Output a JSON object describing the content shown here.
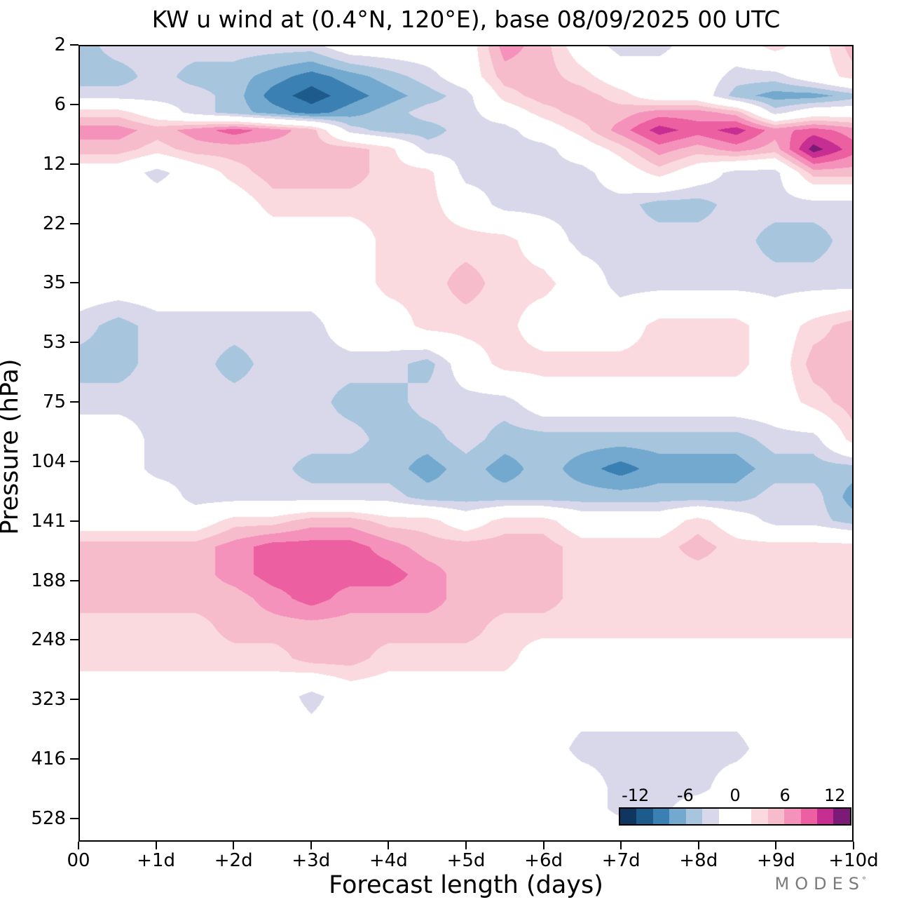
{
  "title": {
    "text": "KW u wind at (0.4°N, 120°E),  base 08/09/2025  00 UTC"
  },
  "branding": {
    "text": "MODES",
    "degree": "°"
  },
  "chart_data": {
    "type": "heatmap",
    "subtype": "filled-contour",
    "title": "KW u wind at (0.4°N, 120°E), base 08/09/2025 00 UTC",
    "xlabel": "Forecast length (days)",
    "ylabel": "Pressure (hPa)",
    "legend_position": "inside-bottom-right",
    "grid": false,
    "x_ticks": [
      "00",
      "+1d",
      "+2d",
      "+3d",
      "+4d",
      "+5d",
      "+6d",
      "+7d",
      "+8d",
      "+9d",
      "+10d"
    ],
    "x_days": [
      0,
      0.5,
      1,
      1.5,
      2,
      2.5,
      3,
      3.5,
      4,
      4.5,
      5,
      5.5,
      6,
      6.5,
      7,
      7.5,
      8,
      8.5,
      9,
      9.5,
      10
    ],
    "x_range_days": [
      0,
      10
    ],
    "y_pressure_ticks": [
      2,
      6,
      12,
      22,
      35,
      53,
      75,
      104,
      141,
      188,
      248,
      323,
      416,
      528
    ],
    "y_axis_span_tick_units": 13.39,
    "row_pressures": [
      2,
      3.5,
      5,
      6.5,
      8,
      10,
      13,
      18,
      25,
      35,
      47,
      60,
      75,
      92,
      108,
      125,
      141,
      160,
      183,
      205,
      235,
      270,
      320,
      400,
      470,
      510,
      560
    ],
    "values": [
      [
        -5,
        -3,
        -3,
        -3,
        -3,
        -3,
        -3,
        0,
        0,
        0,
        0,
        7,
        5,
        0,
        -3,
        -3,
        0,
        0,
        3,
        0,
        5
      ],
      [
        -5,
        -5,
        -3,
        -5,
        -5,
        -7,
        -9,
        -7,
        -5,
        -3,
        0,
        5,
        5,
        3,
        0,
        0,
        0,
        -3,
        -3,
        0,
        3
      ],
      [
        -3,
        -3,
        -3,
        -3,
        -5,
        -9,
        -11,
        -9,
        -7,
        -5,
        -3,
        3,
        5,
        5,
        3,
        0,
        0,
        -5,
        -7,
        -7,
        -5
      ],
      [
        3,
        3,
        0,
        -3,
        -5,
        -7,
        -9,
        -7,
        -5,
        -3,
        -3,
        0,
        3,
        5,
        5,
        7,
        7,
        5,
        -3,
        0,
        0
      ],
      [
        7,
        7,
        5,
        7,
        9,
        7,
        5,
        -3,
        -5,
        -5,
        -3,
        -3,
        0,
        3,
        7,
        11,
        9,
        11,
        7,
        9,
        7
      ],
      [
        5,
        5,
        3,
        5,
        5,
        5,
        5,
        5,
        3,
        -3,
        -3,
        -3,
        -3,
        0,
        3,
        7,
        5,
        7,
        5,
        13,
        9
      ],
      [
        0,
        0,
        -3,
        0,
        3,
        5,
        5,
        5,
        3,
        3,
        -3,
        -3,
        -3,
        -3,
        0,
        3,
        0,
        -3,
        -3,
        5,
        5
      ],
      [
        0,
        0,
        0,
        0,
        0,
        3,
        3,
        3,
        3,
        3,
        0,
        -3,
        -3,
        -3,
        -3,
        -5,
        -5,
        -3,
        -3,
        -3,
        -3
      ],
      [
        0,
        0,
        0,
        0,
        0,
        0,
        0,
        0,
        3,
        3,
        3,
        3,
        0,
        -3,
        -3,
        -3,
        -3,
        -3,
        -5,
        -5,
        -3
      ],
      [
        0,
        0,
        0,
        0,
        0,
        0,
        0,
        0,
        3,
        3,
        5,
        3,
        3,
        0,
        -3,
        -3,
        -3,
        -3,
        -3,
        -3,
        -3
      ],
      [
        -3,
        -5,
        -3,
        -3,
        -3,
        -3,
        -3,
        0,
        0,
        3,
        3,
        3,
        0,
        0,
        0,
        3,
        3,
        3,
        0,
        3,
        5
      ],
      [
        -5,
        -5,
        -3,
        -3,
        -5,
        -3,
        -3,
        -3,
        -3,
        -5,
        0,
        3,
        3,
        3,
        3,
        3,
        3,
        3,
        0,
        5,
        5
      ],
      [
        -3,
        -3,
        -3,
        -3,
        -3,
        -3,
        -3,
        -5,
        -5,
        -3,
        -3,
        -3,
        0,
        0,
        0,
        0,
        0,
        0,
        0,
        3,
        5
      ],
      [
        0,
        0,
        -3,
        -3,
        -3,
        -3,
        -3,
        -3,
        -5,
        -5,
        -3,
        -5,
        -5,
        -5,
        -5,
        -5,
        -5,
        -5,
        -3,
        -3,
        3
      ],
      [
        0,
        0,
        -3,
        -3,
        -3,
        -3,
        -5,
        -5,
        -5,
        -7,
        -5,
        -7,
        -5,
        -7,
        -9,
        -7,
        -7,
        -7,
        -5,
        -5,
        -5
      ],
      [
        0,
        0,
        0,
        -3,
        -3,
        -3,
        -3,
        -3,
        -3,
        -5,
        -5,
        -5,
        -5,
        -5,
        -5,
        -5,
        -5,
        -5,
        -3,
        -3,
        -7
      ],
      [
        0,
        0,
        0,
        0,
        3,
        3,
        5,
        5,
        3,
        3,
        0,
        3,
        3,
        0,
        0,
        0,
        3,
        0,
        -3,
        -3,
        -5
      ],
      [
        5,
        5,
        5,
        5,
        7,
        9,
        9,
        9,
        7,
        5,
        5,
        5,
        5,
        3,
        3,
        3,
        5,
        3,
        3,
        3,
        3
      ],
      [
        5,
        5,
        5,
        5,
        7,
        9,
        9,
        9,
        9,
        7,
        5,
        5,
        5,
        3,
        3,
        3,
        3,
        3,
        3,
        3,
        3
      ],
      [
        5,
        5,
        5,
        5,
        5,
        7,
        9,
        7,
        7,
        7,
        5,
        5,
        5,
        3,
        3,
        3,
        3,
        3,
        3,
        3,
        3
      ],
      [
        3,
        3,
        3,
        3,
        5,
        5,
        5,
        5,
        5,
        5,
        5,
        3,
        3,
        3,
        3,
        3,
        3,
        3,
        3,
        3,
        3
      ],
      [
        3,
        3,
        3,
        3,
        3,
        3,
        5,
        5,
        3,
        3,
        3,
        3,
        0,
        0,
        0,
        0,
        0,
        0,
        0,
        0,
        0
      ],
      [
        0,
        0,
        0,
        0,
        0,
        0,
        -3,
        0,
        0,
        0,
        0,
        0,
        0,
        0,
        0,
        0,
        0,
        0,
        0,
        0,
        0
      ],
      [
        0,
        0,
        0,
        0,
        0,
        0,
        0,
        0,
        0,
        0,
        0,
        0,
        0,
        -3,
        -3,
        -3,
        -3,
        -3,
        0,
        0,
        0
      ],
      [
        0,
        0,
        0,
        0,
        0,
        0,
        0,
        0,
        0,
        0,
        0,
        0,
        0,
        0,
        -3,
        -3,
        -3,
        0,
        0,
        0,
        0
      ],
      [
        0,
        0,
        0,
        0,
        0,
        0,
        0,
        0,
        0,
        0,
        0,
        0,
        0,
        0,
        -3,
        -3,
        0,
        0,
        0,
        0,
        0
      ],
      [
        0,
        0,
        0,
        0,
        0,
        0,
        0,
        0,
        0,
        0,
        0,
        0,
        0,
        0,
        0,
        0,
        0,
        0,
        0,
        0,
        0
      ]
    ],
    "levels_min": -14,
    "levels_max": 14,
    "levels_step": 2,
    "colorbar_ticks": [
      "-12",
      "-6",
      "0",
      "6",
      "12"
    ],
    "colorbar_tick_values": [
      -12,
      -6,
      0,
      6,
      12
    ],
    "colors": [
      "#10355f",
      "#1e5b8d",
      "#3b80b2",
      "#74a9cf",
      "#a7c6de",
      "#d9d8ea",
      "#ffffff",
      "#ffffff",
      "#fadade",
      "#f7bccb",
      "#f592bb",
      "#ec5fa1",
      "#c72e92",
      "#7c1a78"
    ],
    "axis_color": "#000000"
  }
}
